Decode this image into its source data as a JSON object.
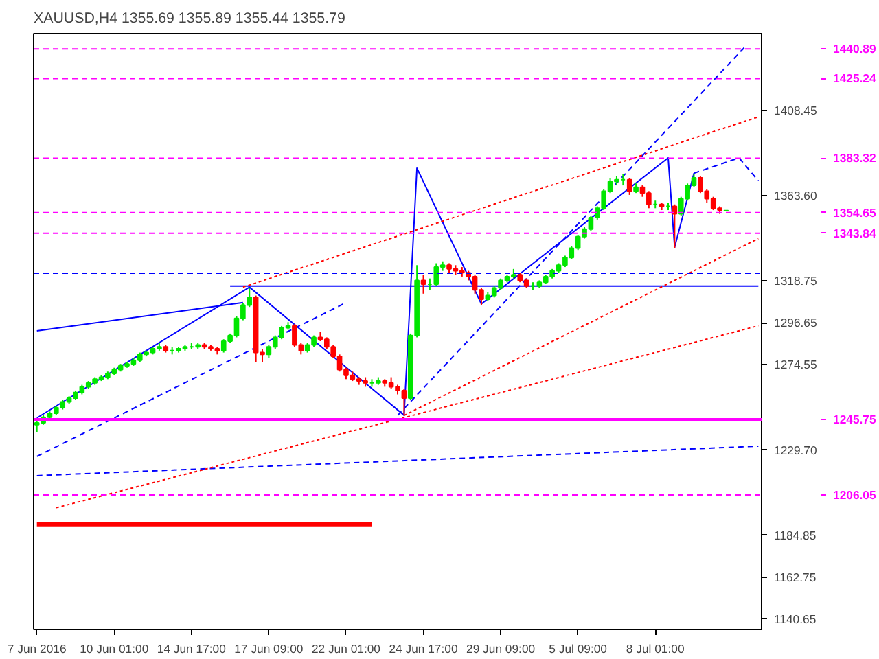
{
  "chart_data": {
    "type": "candlestick",
    "title": "XAUUSD,H4  1355.69 1355.89 1355.44 1355.79",
    "categories": [
      "7 Jun 2016",
      null,
      null,
      null,
      null,
      null,
      null,
      null,
      null,
      null,
      null,
      null,
      "10 Jun 01:00",
      null,
      null,
      null,
      null,
      null,
      null,
      null,
      null,
      null,
      null,
      null,
      "14 Jun 17:00",
      null,
      null,
      null,
      null,
      null,
      null,
      null,
      null,
      null,
      null,
      null,
      "17 Jun 09:00",
      null,
      null,
      null,
      null,
      null,
      null,
      null,
      null,
      null,
      null,
      null,
      "22 Jun 01:00",
      null,
      null,
      null,
      null,
      null,
      null,
      null,
      null,
      null,
      null,
      null,
      "24 Jun 17:00",
      null,
      null,
      null,
      null,
      null,
      null,
      null,
      null,
      null,
      null,
      null,
      "29 Jun 09:00",
      null,
      null,
      null,
      null,
      null,
      null,
      null,
      null,
      null,
      null,
      null,
      "5 Jul 09:00",
      null,
      null,
      null,
      null,
      null,
      null,
      null,
      null,
      null,
      null,
      null,
      "8 Jul 01:00",
      null,
      null,
      null,
      null,
      null,
      null,
      null,
      null,
      null,
      null,
      null,
      null,
      null,
      null,
      null,
      null
    ],
    "ohlc": [
      [
        1243,
        1246,
        1239,
        1244
      ],
      [
        1244,
        1248,
        1243,
        1247
      ],
      [
        1247,
        1250,
        1246,
        1249
      ],
      [
        1249,
        1253,
        1248,
        1252
      ],
      [
        1252,
        1256,
        1251,
        1255
      ],
      [
        1255,
        1258,
        1254,
        1257
      ],
      [
        1257,
        1261,
        1256,
        1260
      ],
      [
        1260,
        1264,
        1259,
        1263
      ],
      [
        1263,
        1266,
        1262,
        1265
      ],
      [
        1265,
        1268,
        1264,
        1267
      ],
      [
        1267,
        1269,
        1266,
        1268
      ],
      [
        1268,
        1271,
        1267,
        1270
      ],
      [
        1270,
        1273,
        1269,
        1272
      ],
      [
        1272,
        1275,
        1271,
        1274
      ],
      [
        1274,
        1276,
        1273,
        1275
      ],
      [
        1275,
        1278,
        1274,
        1277
      ],
      [
        1277,
        1281,
        1276,
        1280
      ],
      [
        1280,
        1282,
        1279,
        1281
      ],
      [
        1281,
        1284,
        1280,
        1283
      ],
      [
        1283,
        1286,
        1282,
        1284
      ],
      [
        1284,
        1285,
        1281,
        1282
      ],
      [
        1282,
        1284,
        1280,
        1282
      ],
      [
        1282,
        1284,
        1281,
        1283
      ],
      [
        1283,
        1285,
        1282,
        1284
      ],
      [
        1284,
        1286,
        1283,
        1284
      ],
      [
        1284,
        1286,
        1283,
        1285
      ],
      [
        1285,
        1286,
        1283,
        1284
      ],
      [
        1284,
        1285,
        1282,
        1283
      ],
      [
        1283,
        1284,
        1280,
        1282
      ],
      [
        1282,
        1288,
        1281,
        1287
      ],
      [
        1287,
        1291,
        1286,
        1290
      ],
      [
        1290,
        1300,
        1289,
        1299
      ],
      [
        1299,
        1307,
        1298,
        1306
      ],
      [
        1306,
        1315,
        1305,
        1310
      ],
      [
        1310,
        1311,
        1276,
        1281
      ],
      [
        1281,
        1283,
        1276,
        1280
      ],
      [
        1280,
        1285,
        1278,
        1284
      ],
      [
        1284,
        1290,
        1283,
        1289
      ],
      [
        1289,
        1295,
        1288,
        1294
      ],
      [
        1294,
        1297,
        1293,
        1295
      ],
      [
        1295,
        1296,
        1284,
        1285
      ],
      [
        1285,
        1286,
        1280,
        1282
      ],
      [
        1282,
        1286,
        1281,
        1285
      ],
      [
        1285,
        1290,
        1284,
        1289
      ],
      [
        1289,
        1292,
        1287,
        1288
      ],
      [
        1288,
        1289,
        1283,
        1284
      ],
      [
        1284,
        1285,
        1278,
        1279
      ],
      [
        1279,
        1280,
        1271,
        1272
      ],
      [
        1272,
        1273,
        1267,
        1269
      ],
      [
        1269,
        1271,
        1266,
        1267
      ],
      [
        1267,
        1268,
        1264,
        1266
      ],
      [
        1266,
        1268,
        1263,
        1265
      ],
      [
        1265,
        1267,
        1263,
        1265
      ],
      [
        1265,
        1268,
        1264,
        1266
      ],
      [
        1266,
        1267,
        1263,
        1265
      ],
      [
        1265,
        1268,
        1262,
        1263
      ],
      [
        1263,
        1264,
        1259,
        1261
      ],
      [
        1261,
        1262,
        1248,
        1257
      ],
      [
        1257,
        1291,
        1256,
        1290
      ],
      [
        1290,
        1327,
        1289,
        1319
      ],
      [
        1319,
        1322,
        1312,
        1317
      ],
      [
        1317,
        1320,
        1314,
        1317
      ],
      [
        1317,
        1328,
        1316,
        1326
      ],
      [
        1326,
        1329,
        1324,
        1327
      ],
      [
        1327,
        1328,
        1323,
        1325
      ],
      [
        1325,
        1327,
        1322,
        1324
      ],
      [
        1324,
        1326,
        1321,
        1323
      ],
      [
        1323,
        1324,
        1319,
        1321
      ],
      [
        1321,
        1322,
        1312,
        1314
      ],
      [
        1314,
        1315,
        1306,
        1309
      ],
      [
        1309,
        1313,
        1308,
        1311
      ],
      [
        1311,
        1316,
        1310,
        1315
      ],
      [
        1315,
        1320,
        1314,
        1319
      ],
      [
        1319,
        1322,
        1318,
        1321
      ],
      [
        1321,
        1325,
        1320,
        1322
      ],
      [
        1322,
        1323,
        1318,
        1319
      ],
      [
        1319,
        1320,
        1315,
        1316
      ],
      [
        1316,
        1318,
        1314,
        1316
      ],
      [
        1316,
        1319,
        1315,
        1318
      ],
      [
        1318,
        1322,
        1317,
        1321
      ],
      [
        1321,
        1325,
        1320,
        1324
      ],
      [
        1324,
        1328,
        1323,
        1327
      ],
      [
        1327,
        1332,
        1326,
        1331
      ],
      [
        1331,
        1337,
        1330,
        1336
      ],
      [
        1336,
        1343,
        1335,
        1342
      ],
      [
        1342,
        1347,
        1341,
        1346
      ],
      [
        1346,
        1353,
        1345,
        1352
      ],
      [
        1352,
        1358,
        1351,
        1357
      ],
      [
        1357,
        1367,
        1356,
        1366
      ],
      [
        1366,
        1373,
        1365,
        1371
      ],
      [
        1371,
        1374,
        1369,
        1372
      ],
      [
        1372,
        1375,
        1369,
        1372
      ],
      [
        1372,
        1373,
        1364,
        1366
      ],
      [
        1366,
        1370,
        1365,
        1368
      ],
      [
        1368,
        1369,
        1363,
        1365
      ],
      [
        1365,
        1366,
        1357,
        1359
      ],
      [
        1359,
        1361,
        1357,
        1359
      ],
      [
        1359,
        1360,
        1356,
        1358
      ],
      [
        1358,
        1360,
        1356,
        1358
      ],
      [
        1358,
        1359,
        1336,
        1354
      ],
      [
        1354,
        1363,
        1353,
        1362
      ],
      [
        1362,
        1370,
        1361,
        1369
      ],
      [
        1369,
        1375,
        1368,
        1373
      ],
      [
        1373,
        1374,
        1365,
        1366
      ],
      [
        1366,
        1367,
        1360,
        1362
      ],
      [
        1362,
        1363,
        1356,
        1357
      ],
      [
        1357,
        1358,
        1354,
        1356
      ],
      [
        1355.69,
        1355.89,
        1355.44,
        1355.79
      ],
      null,
      null,
      null,
      null,
      null
    ],
    "series": [
      {
        "type": "line",
        "color": "#0000ff",
        "line_style": "solid",
        "values": [
          1246.6,
          null,
          null,
          null,
          null,
          null,
          null,
          null,
          null,
          null,
          null,
          null,
          null,
          null,
          null,
          null,
          null,
          null,
          null,
          null,
          null,
          null,
          null,
          null,
          null,
          null,
          null,
          null,
          null,
          null,
          null,
          null,
          null,
          1315.4,
          null,
          null,
          null,
          null,
          null,
          null,
          null,
          null,
          null,
          null,
          null,
          null,
          null,
          null,
          null,
          null,
          null,
          null,
          null,
          null,
          null,
          null,
          null,
          1248,
          null,
          1378.1,
          null,
          null,
          null,
          null,
          null,
          null,
          null,
          null,
          null,
          1306.6,
          null,
          null,
          null,
          null,
          null,
          null,
          null,
          null,
          null,
          null,
          null,
          null,
          null,
          null,
          null,
          null,
          null,
          null,
          null,
          null,
          null,
          null,
          null,
          null,
          null,
          null,
          null,
          null,
          1383.5,
          1336.4,
          null,
          null,
          1375.4,
          null,
          null,
          null,
          null,
          null,
          null,
          null,
          null,
          null,
          null
        ]
      },
      {
        "type": "line",
        "color": "#0000ff",
        "line_style": "dashed",
        "values": [
          null,
          null,
          null,
          null,
          null,
          null,
          null,
          null,
          null,
          null,
          null,
          null,
          null,
          null,
          null,
          null,
          null,
          null,
          null,
          null,
          null,
          null,
          null,
          null,
          null,
          null,
          null,
          null,
          null,
          null,
          null,
          null,
          null,
          null,
          null,
          null,
          null,
          null,
          null,
          null,
          null,
          null,
          null,
          null,
          null,
          null,
          null,
          null,
          null,
          null,
          null,
          null,
          null,
          null,
          null,
          null,
          null,
          null,
          null,
          null,
          null,
          null,
          null,
          null,
          null,
          null,
          null,
          null,
          null,
          null,
          null,
          null,
          null,
          null,
          null,
          null,
          null,
          null,
          null,
          null,
          null,
          null,
          null,
          null,
          null,
          null,
          null,
          null,
          null,
          null,
          null,
          null,
          null,
          null,
          null,
          null,
          null,
          null,
          null,
          null,
          null,
          null,
          1375.4,
          null,
          null,
          null,
          null,
          null,
          null,
          1383.5,
          null,
          null,
          1371.4
        ]
      },
      {
        "type": "line",
        "color": "#0000ff",
        "line_style": "solid",
        "values": [
          1292.4,
          null,
          null,
          null,
          null,
          null,
          null,
          null,
          null,
          null,
          null,
          null,
          null,
          null,
          null,
          null,
          null,
          null,
          null,
          null,
          null,
          null,
          null,
          null,
          null,
          null,
          null,
          null,
          null,
          null,
          null,
          null,
          1307.3,
          null,
          null,
          null,
          null,
          null,
          null,
          null,
          null,
          null,
          null,
          null,
          null,
          null,
          null,
          null,
          null,
          null,
          null,
          null,
          null,
          null,
          null,
          null,
          null,
          null,
          null,
          null,
          null,
          null,
          null,
          null,
          null,
          null,
          null,
          null,
          null,
          null,
          null,
          null,
          null,
          null,
          null,
          null,
          null,
          null,
          null,
          null,
          null,
          null,
          null,
          null,
          null,
          null,
          null,
          null,
          null,
          null,
          null,
          null,
          null,
          null,
          null,
          null,
          null,
          null,
          null,
          null,
          null,
          null,
          null,
          null,
          null,
          null,
          null,
          null,
          null,
          null,
          null,
          null,
          null
        ]
      },
      {
        "type": "line",
        "color": "#0000ff",
        "line_style": "solid",
        "values": [
          null,
          null,
          null,
          null,
          null,
          null,
          null,
          null,
          null,
          null,
          null,
          null,
          null,
          null,
          null,
          null,
          null,
          null,
          null,
          null,
          null,
          null,
          null,
          null,
          null,
          null,
          null,
          null,
          null,
          null,
          1316,
          null,
          null,
          null,
          null,
          null,
          null,
          null,
          null,
          null,
          null,
          null,
          null,
          null,
          null,
          null,
          null,
          null,
          null,
          null,
          null,
          null,
          null,
          null,
          null,
          null,
          null,
          null,
          null,
          null,
          null,
          null,
          null,
          null,
          null,
          null,
          null,
          null,
          null,
          null,
          null,
          null,
          null,
          null,
          null,
          null,
          null,
          null,
          null,
          null,
          null,
          null,
          null,
          null,
          null,
          null,
          null,
          null,
          null,
          null,
          null,
          null,
          null,
          null,
          null,
          null,
          null,
          null,
          null,
          null,
          null,
          null,
          null,
          null,
          null,
          null,
          null,
          null,
          null,
          null,
          null,
          null,
          1316
        ]
      },
      {
        "type": "line",
        "color": "#0000ff",
        "line_style": "dashed",
        "values": [
          1226.3,
          null,
          null,
          null,
          null,
          null,
          null,
          null,
          null,
          null,
          null,
          null,
          null,
          null,
          null,
          null,
          null,
          null,
          null,
          null,
          null,
          null,
          null,
          null,
          null,
          null,
          null,
          null,
          null,
          null,
          null,
          null,
          null,
          null,
          null,
          null,
          null,
          null,
          null,
          null,
          null,
          null,
          null,
          null,
          null,
          null,
          null,
          null,
          1307.3,
          null,
          null,
          null,
          null,
          null,
          null,
          null,
          null,
          null,
          null,
          null,
          null,
          null,
          null,
          null,
          null,
          null,
          null,
          null,
          null,
          null,
          null,
          null,
          null,
          null,
          null,
          null,
          null,
          null,
          null,
          null,
          null,
          null,
          null,
          null,
          null,
          null,
          null,
          null,
          null,
          null,
          null,
          null,
          null,
          null,
          null,
          null,
          null,
          null,
          null,
          null,
          null,
          null,
          null,
          null,
          null,
          null,
          null,
          null,
          null,
          null,
          null,
          null,
          null
        ]
      },
      {
        "type": "line",
        "color": "#0000ff",
        "line_style": "dashed",
        "values": [
          null,
          null,
          null,
          null,
          null,
          null,
          null,
          null,
          null,
          null,
          null,
          null,
          null,
          null,
          null,
          null,
          null,
          null,
          null,
          null,
          null,
          null,
          null,
          null,
          null,
          null,
          null,
          null,
          null,
          null,
          null,
          null,
          null,
          null,
          null,
          null,
          null,
          null,
          null,
          null,
          null,
          null,
          null,
          null,
          null,
          null,
          null,
          null,
          null,
          null,
          null,
          null,
          null,
          null,
          null,
          null,
          1247.9,
          null,
          null,
          null,
          null,
          null,
          null,
          null,
          null,
          null,
          null,
          null,
          null,
          null,
          null,
          null,
          null,
          null,
          null,
          null,
          null,
          null,
          null,
          null,
          null,
          null,
          null,
          null,
          null,
          null,
          null,
          null,
          null,
          null,
          null,
          null,
          null,
          null,
          null,
          null,
          null,
          null,
          null,
          null,
          null,
          null,
          null,
          null,
          null,
          null,
          null,
          null,
          null,
          null,
          1442.2,
          null,
          null
        ]
      },
      {
        "type": "line",
        "color": "#0000ff",
        "line_style": "dashed",
        "values": [
          1216.2,
          null,
          null,
          null,
          null,
          null,
          null,
          null,
          null,
          null,
          null,
          null,
          null,
          null,
          null,
          null,
          null,
          null,
          null,
          null,
          null,
          null,
          null,
          null,
          null,
          null,
          null,
          null,
          null,
          null,
          null,
          null,
          null,
          null,
          null,
          null,
          null,
          null,
          null,
          null,
          null,
          null,
          null,
          null,
          null,
          null,
          null,
          null,
          null,
          null,
          null,
          null,
          null,
          null,
          null,
          null,
          null,
          null,
          null,
          null,
          null,
          null,
          null,
          null,
          null,
          null,
          null,
          null,
          null,
          null,
          null,
          null,
          null,
          null,
          null,
          null,
          null,
          null,
          null,
          null,
          null,
          null,
          null,
          null,
          null,
          null,
          null,
          null,
          null,
          null,
          null,
          null,
          null,
          null,
          null,
          null,
          null,
          null,
          null,
          null,
          null,
          null,
          null,
          null,
          null,
          null,
          null,
          null,
          null,
          null,
          null,
          null,
          1231.7
        ]
      },
      {
        "type": "line",
        "color": "#ff0000",
        "line_style": "dotted",
        "values": [
          null,
          null,
          null,
          1199.3,
          null,
          null,
          null,
          null,
          null,
          null,
          null,
          null,
          null,
          null,
          null,
          null,
          null,
          null,
          null,
          null,
          null,
          null,
          null,
          null,
          null,
          null,
          null,
          null,
          null,
          null,
          null,
          null,
          null,
          null,
          null,
          null,
          null,
          null,
          null,
          null,
          null,
          null,
          null,
          null,
          null,
          null,
          null,
          null,
          null,
          null,
          null,
          null,
          null,
          null,
          null,
          null,
          null,
          null,
          null,
          null,
          null,
          null,
          null,
          null,
          null,
          null,
          null,
          null,
          null,
          null,
          null,
          null,
          null,
          null,
          null,
          null,
          null,
          null,
          null,
          null,
          null,
          null,
          null,
          null,
          null,
          null,
          null,
          null,
          null,
          null,
          null,
          null,
          null,
          null,
          null,
          null,
          null,
          null,
          null,
          null,
          null,
          null,
          null,
          null,
          null,
          null,
          null,
          null,
          null,
          null,
          null,
          null,
          1295.1
        ]
      },
      {
        "type": "line",
        "color": "#ff0000",
        "line_style": "dotted",
        "values": [
          null,
          null,
          null,
          null,
          null,
          null,
          null,
          null,
          null,
          null,
          null,
          null,
          null,
          null,
          null,
          null,
          null,
          null,
          null,
          null,
          null,
          null,
          null,
          null,
          null,
          null,
          null,
          null,
          null,
          null,
          null,
          null,
          1315.4,
          null,
          null,
          null,
          null,
          null,
          null,
          null,
          null,
          null,
          null,
          null,
          null,
          null,
          null,
          null,
          null,
          null,
          null,
          null,
          null,
          null,
          null,
          null,
          null,
          null,
          null,
          null,
          null,
          null,
          null,
          null,
          null,
          null,
          null,
          null,
          null,
          null,
          null,
          null,
          null,
          null,
          null,
          null,
          null,
          null,
          null,
          null,
          null,
          null,
          null,
          null,
          null,
          null,
          null,
          null,
          null,
          null,
          null,
          null,
          null,
          null,
          null,
          null,
          null,
          null,
          null,
          null,
          null,
          null,
          null,
          null,
          null,
          null,
          null,
          null,
          null,
          null,
          null,
          null,
          1405.1
        ]
      },
      {
        "type": "line",
        "color": "#ff0000",
        "line_style": "dotted",
        "values": [
          null,
          null,
          null,
          null,
          null,
          null,
          null,
          null,
          null,
          null,
          null,
          null,
          null,
          null,
          null,
          null,
          null,
          null,
          null,
          null,
          null,
          null,
          null,
          null,
          null,
          null,
          null,
          null,
          null,
          null,
          null,
          null,
          null,
          null,
          null,
          null,
          null,
          null,
          null,
          null,
          null,
          null,
          null,
          null,
          null,
          null,
          null,
          null,
          null,
          null,
          null,
          null,
          null,
          null,
          null,
          null,
          null,
          1247.9,
          null,
          null,
          null,
          null,
          null,
          null,
          null,
          null,
          null,
          null,
          null,
          null,
          null,
          null,
          null,
          null,
          null,
          null,
          null,
          null,
          null,
          null,
          null,
          null,
          null,
          null,
          null,
          null,
          null,
          null,
          null,
          null,
          null,
          null,
          null,
          null,
          null,
          null,
          null,
          null,
          null,
          null,
          null,
          null,
          null,
          null,
          null,
          null,
          null,
          null,
          null,
          null,
          null,
          null,
          1341
        ]
      },
      {
        "type": "line",
        "color": "#ff0000",
        "line_style": "solid",
        "values": [
          1190.6,
          null,
          null,
          null,
          null,
          null,
          null,
          null,
          null,
          null,
          null,
          null,
          null,
          null,
          null,
          null,
          null,
          null,
          null,
          null,
          null,
          null,
          null,
          null,
          null,
          null,
          null,
          null,
          null,
          null,
          null,
          null,
          null,
          null,
          null,
          null,
          null,
          null,
          null,
          null,
          null,
          null,
          null,
          null,
          null,
          null,
          null,
          null,
          null,
          null,
          null,
          null,
          1190.6,
          null,
          null,
          null,
          null,
          null,
          null,
          null,
          null,
          null,
          null,
          null,
          null,
          null,
          null,
          null,
          null,
          null,
          null,
          null,
          null,
          null,
          null,
          null,
          null,
          null,
          null,
          null,
          null,
          null,
          null,
          null,
          null,
          null,
          null,
          null,
          null,
          null,
          null,
          null,
          null,
          null,
          null,
          null,
          null,
          null,
          null,
          null,
          null,
          null,
          null,
          null,
          null,
          null,
          null,
          null,
          null,
          null,
          null,
          null,
          null
        ]
      }
    ],
    "ref_lines": [
      {
        "axis": "y",
        "value": 1440.89,
        "label": "1440.89",
        "color": "#ff00ff",
        "line_style": "dashed"
      },
      {
        "axis": "y",
        "value": 1425.24,
        "label": "1425.24",
        "color": "#ff00ff",
        "line_style": "dashed"
      },
      {
        "axis": "y",
        "value": 1383.32,
        "label": "1383.32",
        "color": "#ff00ff",
        "line_style": "dashed"
      },
      {
        "axis": "y",
        "value": 1354.65,
        "label": "1354.65",
        "color": "#ff00ff",
        "line_style": "dashed"
      },
      {
        "axis": "y",
        "value": 1343.84,
        "label": "1343.84",
        "color": "#ff00ff",
        "line_style": "dashed"
      },
      {
        "axis": "y",
        "value": 1322.8,
        "color": "#0000ff",
        "line_style": "dashed"
      },
      {
        "axis": "y",
        "value": 1245.75,
        "label": "1245.75",
        "color": "#ff00ff",
        "line_style": "solid"
      },
      {
        "axis": "y",
        "value": 1206.05,
        "label": "1206.05",
        "color": "#ff00ff",
        "line_style": "dashed"
      }
    ],
    "ylim": [
      1135.2,
      1448.9
    ],
    "yticks": [
      1408.45,
      {
        "value": 1363.6,
        "label": "1363.60"
      },
      {
        "value": 1318.75,
        "label": "1318.75"
      },
      1296.65,
      1274.55,
      {
        "value": 1229.7,
        "label": "1229.70"
      },
      1184.85,
      1162.75,
      1140.65
    ],
    "grid": false
  }
}
